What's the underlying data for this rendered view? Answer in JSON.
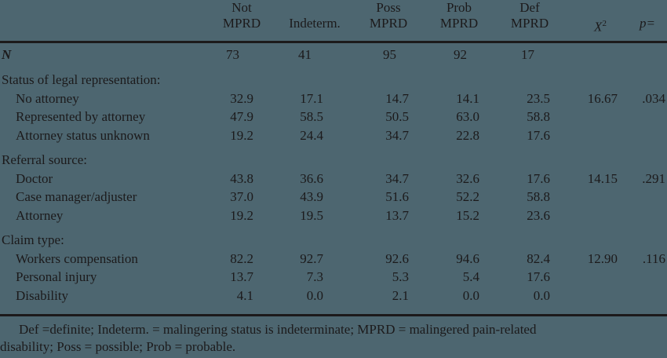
{
  "table": {
    "columns": [
      {
        "line1": "Not",
        "line2": "MPRD"
      },
      {
        "line1": "",
        "line2": "Indeterm."
      },
      {
        "line1": "Poss",
        "line2": "MPRD"
      },
      {
        "line1": "Prob",
        "line2": "MPRD"
      },
      {
        "line1": "Def",
        "line2": "MPRD"
      },
      {
        "line1": "",
        "line2": "X",
        "sup": "2"
      },
      {
        "line1": "",
        "line2": "p="
      }
    ],
    "n_row": {
      "label": "N",
      "values": [
        "73",
        "41",
        "95",
        "92",
        "17",
        "",
        ""
      ]
    },
    "sections": [
      {
        "title": "Status of legal representation:",
        "rows": [
          {
            "label": "No attorney",
            "values": [
              "32.9",
              "17.1",
              "14.7",
              "14.1",
              "23.5",
              "16.67",
              ".034"
            ]
          },
          {
            "label": "Represented by attorney",
            "values": [
              "47.9",
              "58.5",
              "50.5",
              "63.0",
              "58.8",
              "",
              ""
            ]
          },
          {
            "label": "Attorney status unknown",
            "values": [
              "19.2",
              "24.4",
              "34.7",
              "22.8",
              "17.6",
              "",
              ""
            ]
          }
        ]
      },
      {
        "title": "Referral source:",
        "rows": [
          {
            "label": "Doctor",
            "values": [
              "43.8",
              "36.6",
              "34.7",
              "32.6",
              "17.6",
              "14.15",
              ".291"
            ]
          },
          {
            "label": "Case manager/adjuster",
            "values": [
              "37.0",
              "43.9",
              "51.6",
              "52.2",
              "58.8",
              "",
              ""
            ]
          },
          {
            "label": "Attorney",
            "values": [
              "19.2",
              "19.5",
              "13.7",
              "15.2",
              "23.6",
              "",
              ""
            ]
          }
        ]
      },
      {
        "title": "Claim type:",
        "rows": [
          {
            "label": "Workers compensation",
            "values": [
              "82.2",
              "92.7",
              "92.6",
              "94.6",
              "82.4",
              "12.90",
              ".116"
            ]
          },
          {
            "label": "Personal injury",
            "values": [
              "13.7",
              "7.3",
              "5.3",
              "5.4",
              "17.6",
              "",
              ""
            ]
          },
          {
            "label": "Disability",
            "values": [
              "4.1",
              "0.0",
              "2.1",
              "0.0",
              "0.0",
              "",
              ""
            ]
          }
        ]
      }
    ],
    "footnote_line1": "Def =definite; Indeterm. = malingering status is indeterminate; MPRD = malingered pain-related",
    "footnote_line2": "disability; Poss = possible; Prob = probable."
  },
  "colors": {
    "background": "#4d6670",
    "text": "#1c1a1b"
  }
}
